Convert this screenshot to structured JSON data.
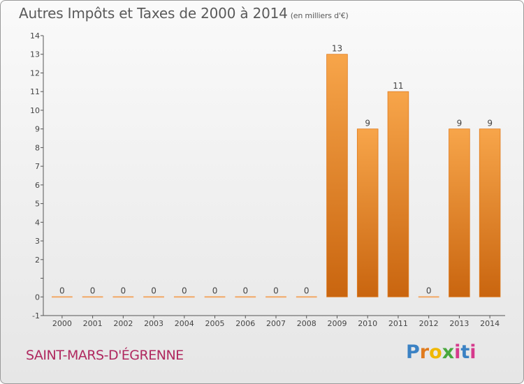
{
  "title": "Autres Impôts et Taxes de 2000 à 2014",
  "subtitle": "(en milliers d'€)",
  "place_name": "SAINT-MARS-D'ÉGRENNE",
  "logo_text": "Proxiti",
  "colors": {
    "bar": "#f28c28",
    "bar_dark": "#c9650f",
    "axis": "#555555",
    "title": "#5a5a5a",
    "place": "#b0285f"
  },
  "chart_data": {
    "type": "bar",
    "title": "Autres Impôts et Taxes de 2000 à 2014",
    "subtitle": "(en milliers d'€)",
    "categories": [
      "2000",
      "2001",
      "2002",
      "2003",
      "2004",
      "2005",
      "2006",
      "2007",
      "2008",
      "2009",
      "2010",
      "2011",
      "2012",
      "2013",
      "2014"
    ],
    "values": [
      0,
      0,
      0,
      0,
      0,
      0,
      0,
      0,
      0,
      13,
      9,
      11,
      0,
      9,
      9
    ],
    "data_labels": [
      "0",
      "0",
      "0",
      "0",
      "0",
      "0",
      "0",
      "0",
      "0",
      "13",
      "9",
      "11",
      "0",
      "9",
      "9"
    ],
    "ylim": [
      -1,
      14
    ],
    "yticks": [
      -1,
      0,
      1,
      2,
      3,
      4,
      5,
      6,
      7,
      8,
      9,
      10,
      11,
      12,
      13,
      14
    ],
    "ytick_labels": [
      "-1",
      "0",
      "",
      "2",
      "3",
      "4",
      "5",
      "6",
      "7",
      "8",
      "9",
      "10",
      "11",
      "12",
      "13",
      "14"
    ],
    "grid": false,
    "legend": "none"
  }
}
